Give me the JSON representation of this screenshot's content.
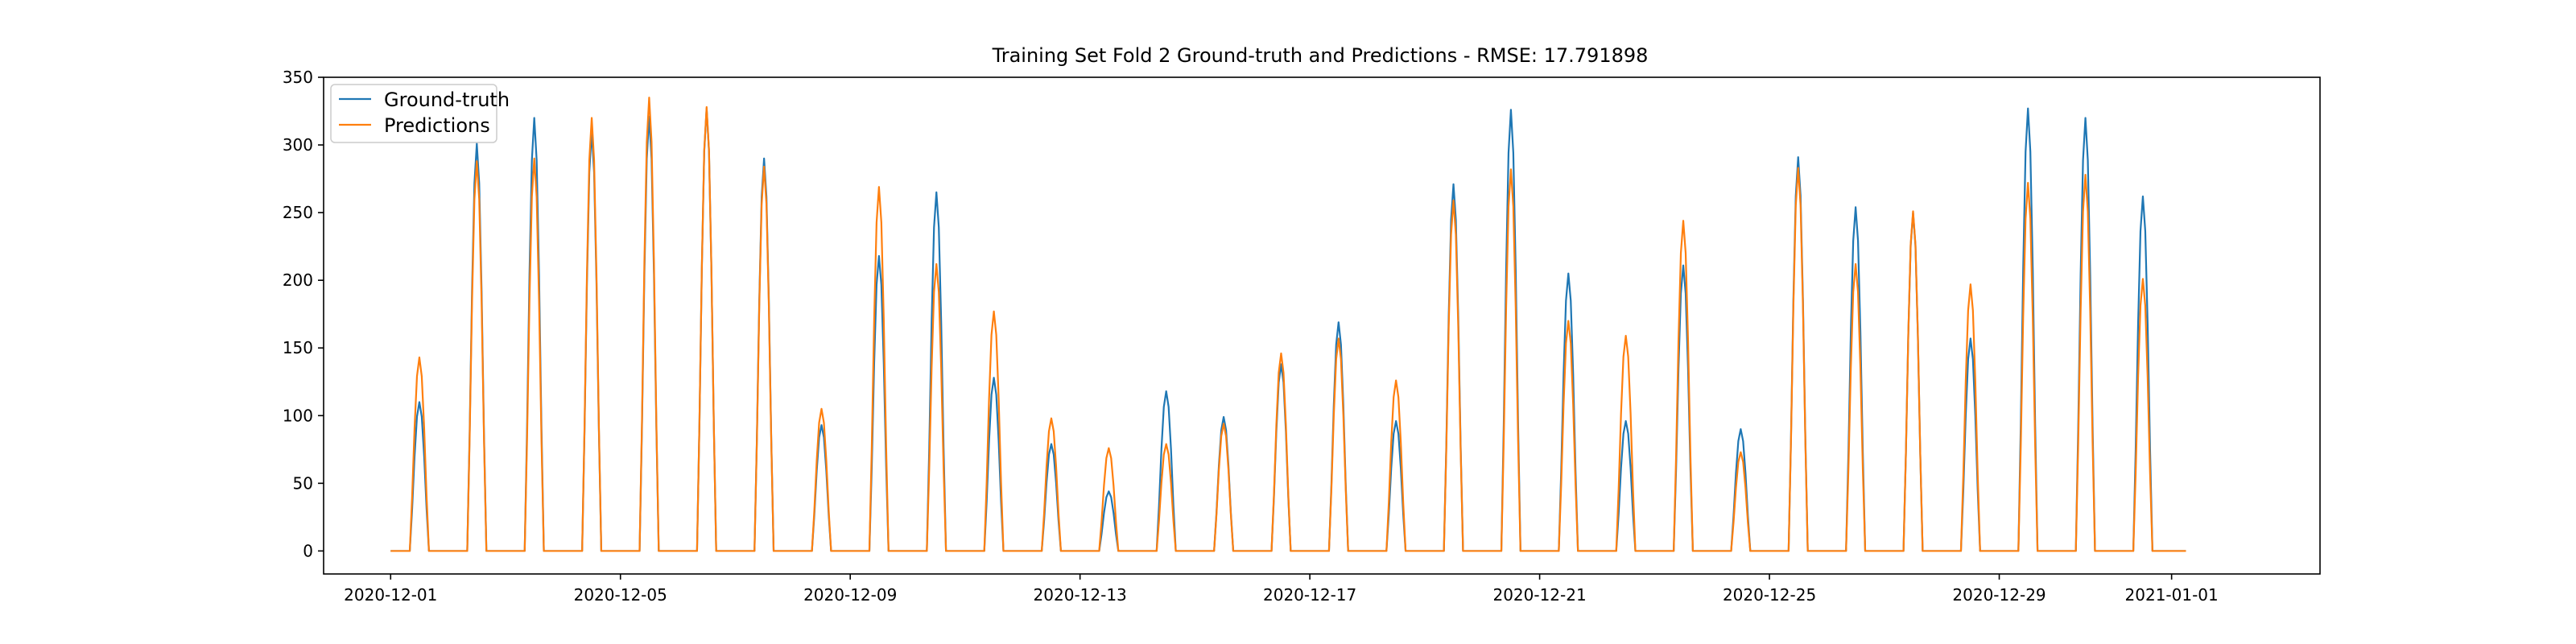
{
  "chart_data": {
    "type": "line",
    "title": "Training Set Fold 2 Ground-truth and Predictions - RMSE: 17.791898",
    "xlabel": "",
    "ylabel": "",
    "x_start": "2020-12-01",
    "x_end": "2021-01-01",
    "xlim": [
      "2020-11-29T20:00",
      "2021-01-03T14:00"
    ],
    "ylim": [
      -17,
      350
    ],
    "x_tick_labels": [
      "2020-12-01",
      "2020-12-05",
      "2020-12-09",
      "2020-12-13",
      "2020-12-17",
      "2020-12-21",
      "2020-12-25",
      "2020-12-29",
      "2021-01-01"
    ],
    "y_ticks": [
      0,
      50,
      100,
      150,
      200,
      250,
      300,
      350
    ],
    "grid": false,
    "legend_position": "upper-left",
    "x_dates": [
      "2020-12-01",
      "2020-12-02",
      "2020-12-03",
      "2020-12-04",
      "2020-12-05",
      "2020-12-06",
      "2020-12-07",
      "2020-12-08",
      "2020-12-09",
      "2020-12-10",
      "2020-12-11",
      "2020-12-12",
      "2020-12-13",
      "2020-12-14",
      "2020-12-15",
      "2020-12-16",
      "2020-12-17",
      "2020-12-18",
      "2020-12-19",
      "2020-12-20",
      "2020-12-21",
      "2020-12-22",
      "2020-12-23",
      "2020-12-24",
      "2020-12-25",
      "2020-12-26",
      "2020-12-27",
      "2020-12-28",
      "2020-12-29",
      "2020-12-30",
      "2020-12-31"
    ],
    "series": [
      {
        "name": "Ground-truth",
        "color": "#1f77b4",
        "daily_peak": [
          110,
          301,
          320,
          310,
          321,
          327,
          290,
          93,
          218,
          265,
          128,
          79,
          44,
          118,
          99,
          138,
          169,
          96,
          271,
          326,
          205,
          96,
          211,
          90,
          291,
          254,
          250,
          157,
          327,
          320,
          262
        ]
      },
      {
        "name": "Predictions",
        "color": "#ff7f0e",
        "daily_peak": [
          143,
          288,
          290,
          320,
          335,
          328,
          284,
          105,
          269,
          212,
          177,
          98,
          76,
          79,
          94,
          146,
          157,
          126,
          259,
          282,
          170,
          159,
          244,
          73,
          283,
          212,
          251,
          197,
          272,
          278,
          201
        ]
      }
    ]
  }
}
